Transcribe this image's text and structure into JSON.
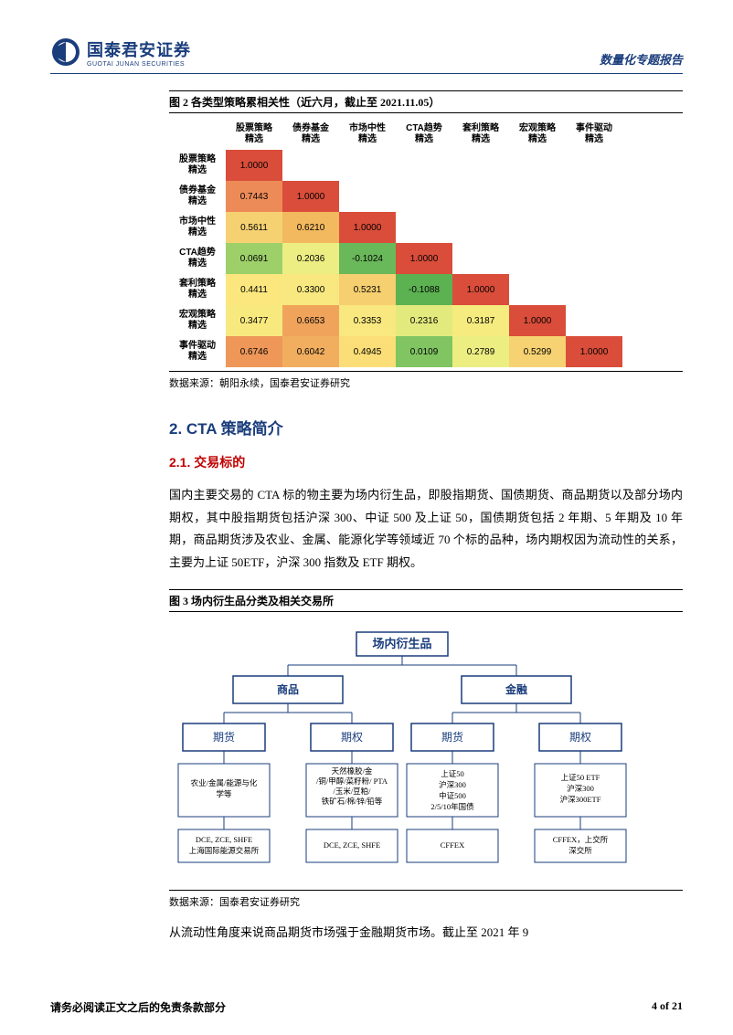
{
  "header": {
    "brand_cn": "国泰君安证券",
    "brand_en": "GUOTAI JUNAN SECURITIES",
    "report_type": "数量化专题报告"
  },
  "fig2": {
    "caption": "图 2 各类型策略累相关性（近六月，截止至 2021.11.05）",
    "col_labels": [
      "股票策略\n精选",
      "债券基金\n精选",
      "市场中性\n精选",
      "CTA趋势\n精选",
      "套利策略\n精选",
      "宏观策略\n精选",
      "事件驱动\n精选"
    ],
    "row_labels": [
      "股票策略\n精选",
      "债券基金\n精选",
      "市场中性\n精选",
      "CTA趋势\n精选",
      "套利策略\n精选",
      "宏观策略\n精选",
      "事件驱动\n精选"
    ],
    "cells": [
      [
        "1.0000",
        "",
        "",
        "",
        "",
        "",
        ""
      ],
      [
        "0.7443",
        "1.0000",
        "",
        "",
        "",
        "",
        ""
      ],
      [
        "0.5611",
        "0.6210",
        "1.0000",
        "",
        "",
        "",
        ""
      ],
      [
        "0.0691",
        "0.2036",
        "-0.1024",
        "1.0000",
        "",
        "",
        ""
      ],
      [
        "0.4411",
        "0.3300",
        "0.5231",
        "-0.1088",
        "1.0000",
        "",
        ""
      ],
      [
        "0.3477",
        "0.6653",
        "0.3353",
        "0.2316",
        "0.3187",
        "1.0000",
        ""
      ],
      [
        "0.6746",
        "0.6042",
        "0.4945",
        "0.0109",
        "0.2789",
        "0.5299",
        "1.0000"
      ]
    ],
    "colors": [
      [
        "#d94d3a",
        "",
        "",
        "",
        "",
        "",
        ""
      ],
      [
        "#ed8b58",
        "#d94d3a",
        "",
        "",
        "",
        "",
        ""
      ],
      [
        "#f6d172",
        "#f2b95f",
        "#d94d3a",
        "",
        "",
        "",
        ""
      ],
      [
        "#9dd069",
        "#ecee83",
        "#69b85a",
        "#d94d3a",
        "",
        "",
        ""
      ],
      [
        "#fbe77e",
        "#f8e87f",
        "#f6cf70",
        "#5cb151",
        "#d94d3a",
        "",
        ""
      ],
      [
        "#f8e97f",
        "#f0a35b",
        "#f8e87f",
        "#e2ea7e",
        "#f6eb7f",
        "#d94d3a",
        ""
      ],
      [
        "#ee9759",
        "#f1ae5f",
        "#fbde77",
        "#80c562",
        "#ecee82",
        "#f6d272",
        "#d94d3a"
      ]
    ],
    "source": "数据来源：朝阳永续，国泰君安证券研究"
  },
  "sec2": {
    "title": "2.  CTA 策略简介",
    "sub1_title": "2.1.  交易标的",
    "sub1_para": "国内主要交易的 CTA 标的物主要为场内衍生品，即股指期货、国债期货、商品期货以及部分场内期权，其中股指期货包括沪深 300、中证 500 及上证 50，国债期货包括 2 年期、5 年期及 10 年期，商品期货涉及农业、金属、能源化学等领域近 70 个标的品种，场内期权因为流动性的关系，主要为上证 50ETF，沪深 300 指数及 ETF 期权。"
  },
  "fig3": {
    "caption": "图 3 场内衍生品分类及相关交易所",
    "root": "场内衍生品",
    "l1": {
      "a": "商品",
      "b": "金融"
    },
    "l2": {
      "a": "期货",
      "b": "期权",
      "c": "期货",
      "d": "期权"
    },
    "leaf": {
      "a1": "农业/金属/能源与化\n学等",
      "a2": "DCE, ZCE, SHFE\n上海国际能源交易所",
      "b1": "天然橡胶/金\n/铜/甲醇/菜籽粉/ PTA\n/玉米/豆粕/\n铁矿石/棉/锌/铅等",
      "b2": "DCE, ZCE, SHFE",
      "c1": "上证50\n沪深300\n中证500\n2/5/10年国债",
      "c2": "CFFEX",
      "d1": "上证50 ETF\n沪深300\n沪深300ETF",
      "d2": "CFFEX，上交所\n深交所"
    },
    "source": "数据来源：国泰君安证券研究",
    "node_border_color": "#1a3d7c",
    "node_fill_color": "#ffffff",
    "line_color": "#1a3d7c",
    "title_font_size": 13,
    "node_font_size": 12
  },
  "closing_para": "从流动性角度来说商品期货市场强于金融期货市场。截止至 2021 年 9",
  "footer": {
    "left": "请务必阅读正文之后的免责条款部分",
    "right": "4 of 21"
  }
}
